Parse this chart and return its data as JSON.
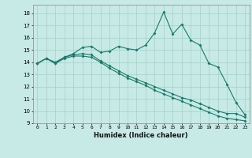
{
  "xlabel": "Humidex (Indice chaleur)",
  "background_color": "#c8eae6",
  "grid_color": "#a8d4ce",
  "line_color": "#1a7a6a",
  "xlim": [
    -0.5,
    23.5
  ],
  "ylim": [
    9,
    18.7
  ],
  "yticks": [
    9,
    10,
    11,
    12,
    13,
    14,
    15,
    16,
    17,
    18
  ],
  "xticks": [
    0,
    1,
    2,
    3,
    4,
    5,
    6,
    7,
    8,
    9,
    10,
    11,
    12,
    13,
    14,
    15,
    16,
    17,
    18,
    19,
    20,
    21,
    22,
    23
  ],
  "line1_x": [
    0,
    1,
    2,
    3,
    4,
    5,
    6,
    7,
    8,
    9,
    10,
    11,
    12,
    13,
    14,
    15,
    16,
    17,
    18,
    19,
    20,
    21,
    22,
    23
  ],
  "line1_y": [
    13.9,
    14.3,
    14.0,
    14.4,
    14.7,
    15.2,
    15.3,
    14.8,
    14.9,
    15.3,
    15.1,
    15.0,
    15.4,
    16.4,
    18.1,
    16.3,
    17.1,
    15.8,
    15.4,
    13.9,
    13.6,
    12.2,
    10.7,
    9.7
  ],
  "line2_x": [
    0,
    1,
    2,
    3,
    4,
    5,
    6,
    7,
    8,
    9,
    10,
    11,
    12,
    13,
    14,
    15,
    16,
    17,
    18,
    19,
    20,
    21,
    22,
    23
  ],
  "line2_y": [
    13.9,
    14.3,
    13.9,
    14.4,
    14.6,
    14.7,
    14.6,
    14.1,
    13.7,
    13.3,
    12.9,
    12.6,
    12.3,
    12.0,
    11.7,
    11.4,
    11.1,
    10.9,
    10.6,
    10.3,
    10.0,
    9.8,
    9.8,
    9.5
  ],
  "line3_x": [
    0,
    1,
    2,
    3,
    4,
    5,
    6,
    7,
    8,
    9,
    10,
    11,
    12,
    13,
    14,
    15,
    16,
    17,
    18,
    19,
    20,
    21,
    22,
    23
  ],
  "line3_y": [
    13.9,
    14.3,
    13.9,
    14.3,
    14.5,
    14.5,
    14.4,
    14.0,
    13.5,
    13.1,
    12.7,
    12.4,
    12.1,
    11.7,
    11.4,
    11.1,
    10.8,
    10.5,
    10.2,
    9.9,
    9.6,
    9.4,
    9.3,
    9.2
  ]
}
